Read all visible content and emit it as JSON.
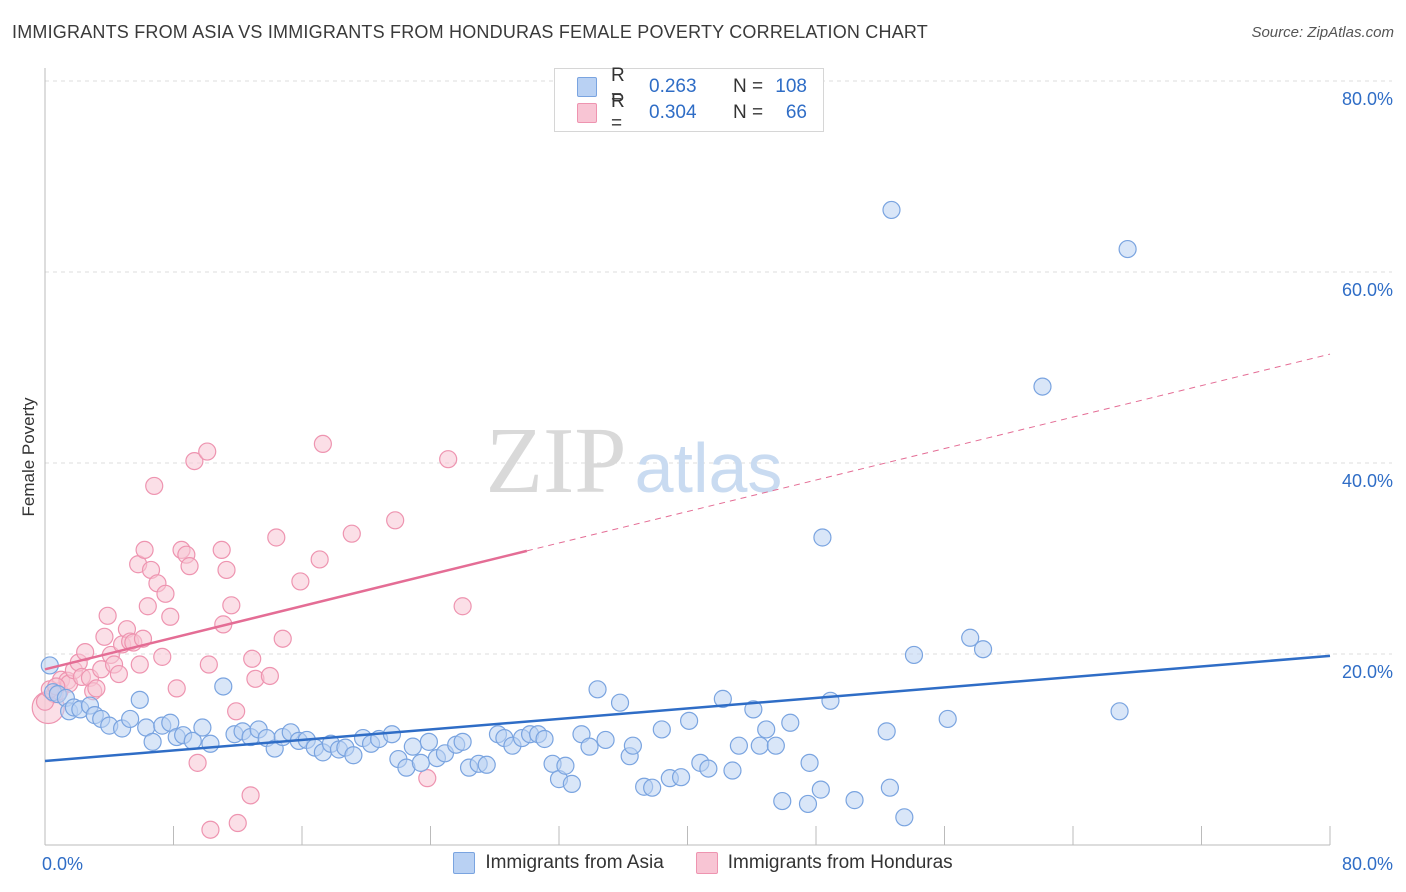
{
  "title": "IMMIGRANTS FROM ASIA VS IMMIGRANTS FROM HONDURAS FEMALE POVERTY CORRELATION CHART",
  "source": "Source: ZipAtlas.com",
  "watermark": {
    "zip": "ZIP",
    "atlas": "atlas"
  },
  "legend": {
    "asia": {
      "r_label": "R =",
      "r_value": "0.263",
      "n_label": "N =",
      "n_value": "108"
    },
    "honduras": {
      "r_label": "R =",
      "r_value": "0.304",
      "n_label": "N =",
      "n_value": "66"
    }
  },
  "bottom_legend": {
    "asia": "Immigrants from Asia",
    "honduras": "Immigrants from Honduras"
  },
  "chart_data": {
    "type": "scatter",
    "ylabel": "Female Poverty",
    "xlim": [
      0,
      80
    ],
    "ylim": [
      0,
      80
    ],
    "x_tick_labels": [
      "0.0%",
      "80.0%"
    ],
    "y_tick_labels": [
      "20.0%",
      "40.0%",
      "60.0%",
      "80.0%"
    ],
    "y_ticks": [
      20,
      40,
      60,
      80
    ],
    "grid": "horizontal dashed",
    "colors": {
      "asia_fill": "#b9d1f3",
      "asia_stroke": "#7aa4e0",
      "asia_line": "#2f6dc6",
      "honduras_fill": "#f8c5d4",
      "honduras_stroke": "#ee94b0",
      "honduras_line": "#e46d95",
      "axis_label": "#2f6dc6"
    },
    "series": [
      {
        "name": "Immigrants from Asia",
        "trend": {
          "x0": 0,
          "y0": 8.8,
          "x1": 80,
          "y1": 19.8
        },
        "points": [
          [
            0.3,
            18.8
          ],
          [
            0.5,
            16.0
          ],
          [
            0.8,
            15.8
          ],
          [
            1.3,
            15.4
          ],
          [
            1.5,
            14.0
          ],
          [
            1.8,
            14.4
          ],
          [
            2.2,
            14.2
          ],
          [
            2.8,
            14.6
          ],
          [
            3.1,
            13.6
          ],
          [
            3.5,
            13.2
          ],
          [
            4.0,
            12.5
          ],
          [
            4.8,
            12.2
          ],
          [
            5.3,
            13.2
          ],
          [
            5.9,
            15.2
          ],
          [
            6.3,
            12.3
          ],
          [
            6.7,
            10.8
          ],
          [
            7.3,
            12.5
          ],
          [
            7.8,
            12.8
          ],
          [
            8.2,
            11.3
          ],
          [
            8.6,
            11.5
          ],
          [
            9.2,
            10.9
          ],
          [
            9.8,
            12.3
          ],
          [
            10.3,
            10.6
          ],
          [
            11.1,
            16.6
          ],
          [
            11.8,
            11.6
          ],
          [
            12.3,
            11.9
          ],
          [
            12.8,
            11.3
          ],
          [
            13.3,
            12.1
          ],
          [
            13.8,
            11.2
          ],
          [
            14.3,
            10.1
          ],
          [
            14.8,
            11.3
          ],
          [
            15.3,
            11.8
          ],
          [
            15.8,
            10.9
          ],
          [
            16.3,
            11.0
          ],
          [
            16.8,
            10.2
          ],
          [
            17.3,
            9.7
          ],
          [
            17.8,
            10.6
          ],
          [
            18.3,
            10.0
          ],
          [
            18.7,
            10.2
          ],
          [
            19.2,
            9.4
          ],
          [
            19.8,
            11.2
          ],
          [
            20.3,
            10.6
          ],
          [
            20.8,
            11.1
          ],
          [
            21.6,
            11.6
          ],
          [
            22.0,
            9.0
          ],
          [
            22.5,
            8.1
          ],
          [
            22.9,
            10.3
          ],
          [
            23.4,
            8.6
          ],
          [
            23.9,
            10.8
          ],
          [
            24.4,
            9.1
          ],
          [
            24.9,
            9.6
          ],
          [
            25.6,
            10.5
          ],
          [
            26.0,
            10.8
          ],
          [
            26.4,
            8.1
          ],
          [
            27.0,
            8.5
          ],
          [
            27.5,
            8.4
          ],
          [
            28.2,
            11.6
          ],
          [
            28.6,
            11.2
          ],
          [
            29.1,
            10.4
          ],
          [
            29.7,
            11.2
          ],
          [
            30.2,
            11.6
          ],
          [
            30.7,
            11.6
          ],
          [
            31.1,
            11.1
          ],
          [
            31.6,
            8.5
          ],
          [
            32.0,
            6.9
          ],
          [
            32.4,
            8.3
          ],
          [
            32.8,
            6.4
          ],
          [
            33.4,
            11.6
          ],
          [
            33.9,
            10.3
          ],
          [
            34.4,
            16.3
          ],
          [
            34.9,
            11.0
          ],
          [
            35.8,
            14.9
          ],
          [
            36.4,
            9.3
          ],
          [
            36.6,
            10.4
          ],
          [
            37.3,
            6.1
          ],
          [
            37.8,
            6.0
          ],
          [
            38.4,
            12.1
          ],
          [
            38.9,
            7.0
          ],
          [
            39.6,
            7.1
          ],
          [
            40.1,
            13.0
          ],
          [
            40.8,
            8.6
          ],
          [
            41.3,
            8.0
          ],
          [
            42.2,
            15.3
          ],
          [
            42.8,
            7.8
          ],
          [
            43.2,
            10.4
          ],
          [
            44.1,
            14.2
          ],
          [
            44.5,
            10.4
          ],
          [
            44.9,
            12.1
          ],
          [
            45.5,
            10.4
          ],
          [
            45.9,
            4.6
          ],
          [
            46.4,
            12.8
          ],
          [
            47.5,
            4.3
          ],
          [
            47.6,
            8.6
          ],
          [
            48.3,
            5.8
          ],
          [
            48.9,
            15.1
          ],
          [
            50.4,
            4.7
          ],
          [
            52.7,
            66.5
          ],
          [
            52.4,
            11.9
          ],
          [
            52.6,
            6.0
          ],
          [
            53.5,
            2.9
          ],
          [
            54.1,
            19.9
          ],
          [
            56.2,
            13.2
          ],
          [
            57.6,
            21.7
          ],
          [
            58.4,
            20.5
          ],
          [
            62.1,
            48.0
          ],
          [
            66.9,
            14.0
          ],
          [
            67.4,
            62.4
          ],
          [
            48.4,
            32.2
          ]
        ]
      },
      {
        "name": "Immigrants from Honduras",
        "trend": {
          "x0": 0,
          "y0": 18.4,
          "x1": 30,
          "y1": 30.8,
          "dash_x1": 80,
          "dash_y1": 51.4
        },
        "points": [
          [
            0.2,
            14.4
          ],
          [
            0.6,
            15.8
          ],
          [
            0.9,
            16.1
          ],
          [
            1.0,
            17.3
          ],
          [
            1.4,
            17.2
          ],
          [
            1.5,
            16.9
          ],
          [
            1.8,
            18.3
          ],
          [
            2.1,
            19.1
          ],
          [
            2.3,
            17.6
          ],
          [
            2.5,
            20.2
          ],
          [
            2.8,
            17.5
          ],
          [
            3.0,
            16.1
          ],
          [
            3.2,
            16.4
          ],
          [
            3.5,
            18.4
          ],
          [
            3.7,
            21.8
          ],
          [
            3.9,
            24.0
          ],
          [
            4.1,
            19.9
          ],
          [
            4.3,
            18.9
          ],
          [
            4.6,
            17.9
          ],
          [
            4.8,
            21.0
          ],
          [
            5.1,
            22.6
          ],
          [
            5.3,
            21.3
          ],
          [
            5.5,
            21.2
          ],
          [
            5.8,
            29.4
          ],
          [
            5.9,
            18.9
          ],
          [
            6.1,
            21.6
          ],
          [
            6.2,
            30.9
          ],
          [
            6.4,
            25.0
          ],
          [
            6.6,
            28.8
          ],
          [
            6.8,
            37.6
          ],
          [
            7.0,
            27.4
          ],
          [
            7.3,
            19.7
          ],
          [
            7.5,
            26.3
          ],
          [
            7.8,
            23.9
          ],
          [
            8.2,
            16.4
          ],
          [
            8.5,
            30.9
          ],
          [
            8.8,
            30.4
          ],
          [
            9.0,
            29.2
          ],
          [
            9.3,
            40.2
          ],
          [
            9.5,
            8.6
          ],
          [
            10.1,
            41.2
          ],
          [
            10.2,
            18.9
          ],
          [
            10.3,
            1.6
          ],
          [
            11.0,
            30.9
          ],
          [
            11.1,
            23.1
          ],
          [
            11.3,
            28.8
          ],
          [
            11.6,
            25.1
          ],
          [
            11.9,
            14.0
          ],
          [
            12.0,
            2.3
          ],
          [
            12.8,
            5.2
          ],
          [
            12.9,
            19.5
          ],
          [
            13.1,
            17.4
          ],
          [
            14.0,
            17.7
          ],
          [
            14.4,
            32.2
          ],
          [
            14.8,
            21.6
          ],
          [
            15.9,
            27.6
          ],
          [
            17.1,
            29.9
          ],
          [
            17.3,
            42.0
          ],
          [
            19.1,
            32.6
          ],
          [
            21.8,
            34.0
          ],
          [
            23.8,
            7.0
          ],
          [
            25.1,
            40.4
          ],
          [
            26.0,
            25.0
          ],
          [
            0.0,
            15.0
          ],
          [
            0.3,
            16.3
          ],
          [
            0.7,
            16.6
          ]
        ]
      }
    ]
  }
}
